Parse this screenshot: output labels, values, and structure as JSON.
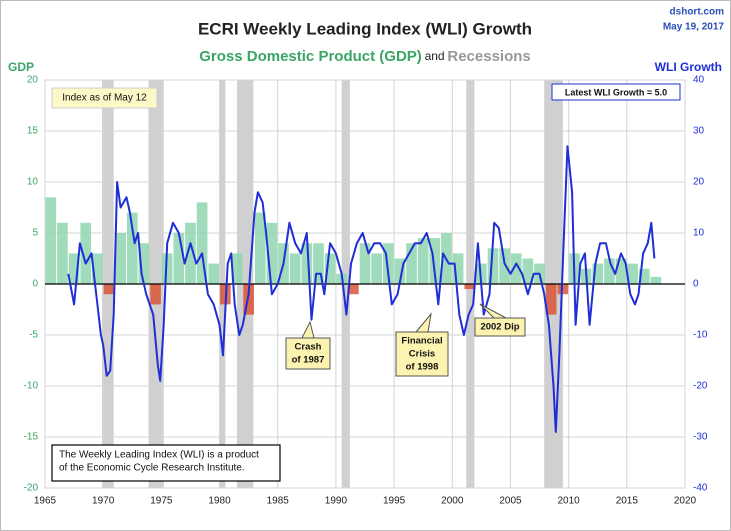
{
  "chart_data": {
    "type": "bar-line",
    "title": "ECRI Weekly Leading Index (WLI) Growth",
    "subtitle_joiner": "and",
    "recessions_label": "Recessions",
    "source": "dshort.com",
    "date": "May 19, 2017",
    "ylabel": "GDP",
    "xlim": [
      1965,
      2020
    ],
    "xticks": [
      1965,
      1970,
      1975,
      1980,
      1985,
      1990,
      1995,
      2000,
      2005,
      2010,
      2015,
      2020
    ],
    "ylim": [
      -20,
      20
    ],
    "yticks": [
      -20,
      -15,
      -10,
      -5,
      0,
      5,
      10,
      15,
      20
    ],
    "y2lim": [
      -40,
      40
    ],
    "y2ticks": [
      -40,
      -30,
      -20,
      -10,
      0,
      10,
      20,
      30,
      40
    ],
    "grid": true,
    "recessions": [
      [
        1969.9,
        1970.9
      ],
      [
        1973.9,
        1975.2
      ],
      [
        1980.0,
        1980.5
      ],
      [
        1981.5,
        1982.9
      ],
      [
        1990.5,
        1991.2
      ],
      [
        2001.2,
        2001.9
      ],
      [
        2007.9,
        2009.5
      ]
    ],
    "recession_color": "#c8c8c8",
    "series": [
      {
        "name": "Gross Domestic Product (GDP)",
        "color": "#8fd6b0",
        "negative_color": "#d9553a",
        "x": [
          1965,
          1966,
          1967,
          1968,
          1969,
          1970,
          1971,
          1972,
          1973,
          1974,
          1975,
          1976,
          1977,
          1978,
          1979,
          1980,
          1981,
          1982,
          1983,
          1984,
          1985,
          1986,
          1987,
          1988,
          1989,
          1990,
          1991,
          1992,
          1993,
          1994,
          1995,
          1996,
          1997,
          1998,
          1999,
          2000,
          2001,
          2002,
          2003,
          2004,
          2005,
          2006,
          2007,
          2008,
          2009,
          2010,
          2011,
          2012,
          2013,
          2014,
          2015,
          2016,
          2017
        ],
        "values": [
          8.5,
          6,
          3,
          6,
          3,
          -1,
          5,
          7,
          4,
          -2,
          3,
          5,
          6,
          8,
          2,
          -2,
          3,
          -3,
          7,
          6,
          4,
          3,
          4,
          4,
          3,
          1,
          -1,
          4,
          3,
          4,
          2.5,
          4,
          4.5,
          4.5,
          5,
          3,
          -0.5,
          2,
          3.5,
          3.5,
          3,
          2.5,
          2,
          -3,
          -1,
          3,
          1.5,
          2,
          2.5,
          2.5,
          2,
          1.5,
          0.7
        ]
      },
      {
        "name": "WLI Growth",
        "axis": "y2",
        "color": "#1f2fd6",
        "x": [
          1967.0,
          1967.5,
          1968.0,
          1968.5,
          1969.0,
          1969.5,
          1969.8,
          1970.0,
          1970.3,
          1970.6,
          1970.9,
          1971.2,
          1971.5,
          1972.0,
          1972.3,
          1972.7,
          1973.0,
          1973.3,
          1973.7,
          1974.0,
          1974.3,
          1974.7,
          1974.9,
          1975.2,
          1975.5,
          1976.0,
          1976.5,
          1977.0,
          1977.5,
          1978.0,
          1978.5,
          1979.0,
          1979.5,
          1980.0,
          1980.3,
          1980.7,
          1981.0,
          1981.3,
          1981.7,
          1982.0,
          1982.5,
          1983.0,
          1983.3,
          1983.7,
          1984.0,
          1984.5,
          1985.0,
          1985.5,
          1986.0,
          1986.5,
          1987.0,
          1987.5,
          1987.9,
          1988.3,
          1988.7,
          1989.0,
          1989.5,
          1990.0,
          1990.5,
          1990.9,
          1991.3,
          1991.8,
          1992.3,
          1992.8,
          1993.3,
          1993.8,
          1994.3,
          1994.8,
          1995.3,
          1995.8,
          1996.3,
          1996.8,
          1997.3,
          1997.8,
          1998.3,
          1998.8,
          1999.2,
          1999.7,
          2000.2,
          2000.6,
          2001.0,
          2001.4,
          2001.8,
          2002.2,
          2002.7,
          2003.2,
          2003.6,
          2004.0,
          2004.5,
          2005.0,
          2005.5,
          2006.0,
          2006.5,
          2007.0,
          2007.5,
          2007.9,
          2008.3,
          2008.7,
          2008.9,
          2009.2,
          2009.6,
          2009.9,
          2010.3,
          2010.6,
          2011.0,
          2011.4,
          2011.8,
          2012.3,
          2012.7,
          2013.2,
          2013.6,
          2014.0,
          2014.5,
          2014.9,
          2015.3,
          2015.7,
          2016.0,
          2016.4,
          2016.8,
          2017.1,
          2017.37
        ],
        "values": [
          2,
          -4,
          8,
          4,
          6,
          -4,
          -10,
          -12,
          -18,
          -17,
          -6,
          20,
          15,
          17,
          14,
          8,
          10,
          2,
          -2,
          -4,
          -6,
          -16,
          -19,
          -8,
          8,
          12,
          10,
          4,
          8,
          4,
          6,
          -2,
          -4,
          -8,
          -14,
          4,
          6,
          -4,
          -10,
          -8,
          -2,
          14,
          18,
          16,
          10,
          -2,
          0,
          4,
          12,
          8,
          6,
          10,
          -7,
          2,
          2,
          -2,
          8,
          6,
          2,
          -6,
          4,
          8,
          10,
          6,
          8,
          8,
          6,
          -4,
          -2,
          4,
          6,
          8,
          8,
          10,
          6,
          -4,
          6,
          4,
          4,
          -6,
          -10,
          -6,
          -4,
          8,
          -6,
          -2,
          12,
          11,
          4,
          2,
          4,
          2,
          -2,
          2,
          2,
          -2,
          -8,
          -20,
          -29,
          -14,
          10,
          27,
          18,
          -8,
          4,
          6,
          -8,
          4,
          8,
          8,
          4,
          2,
          6,
          4,
          -2,
          -4,
          -2,
          6,
          8,
          12,
          5
        ]
      }
    ],
    "annotations": {
      "index_date": "Index as of May 12",
      "latest": "Latest WLI Growth = 5.0",
      "crash": [
        "Crash",
        "of 1987"
      ],
      "crisis": [
        "Financial",
        "Crisis",
        "of 1998"
      ],
      "dip": "2002 Dip",
      "note": [
        "The Weekly Leading Index (WLI) is a product",
        "of the Economic Cycle Research Institute."
      ]
    }
  }
}
